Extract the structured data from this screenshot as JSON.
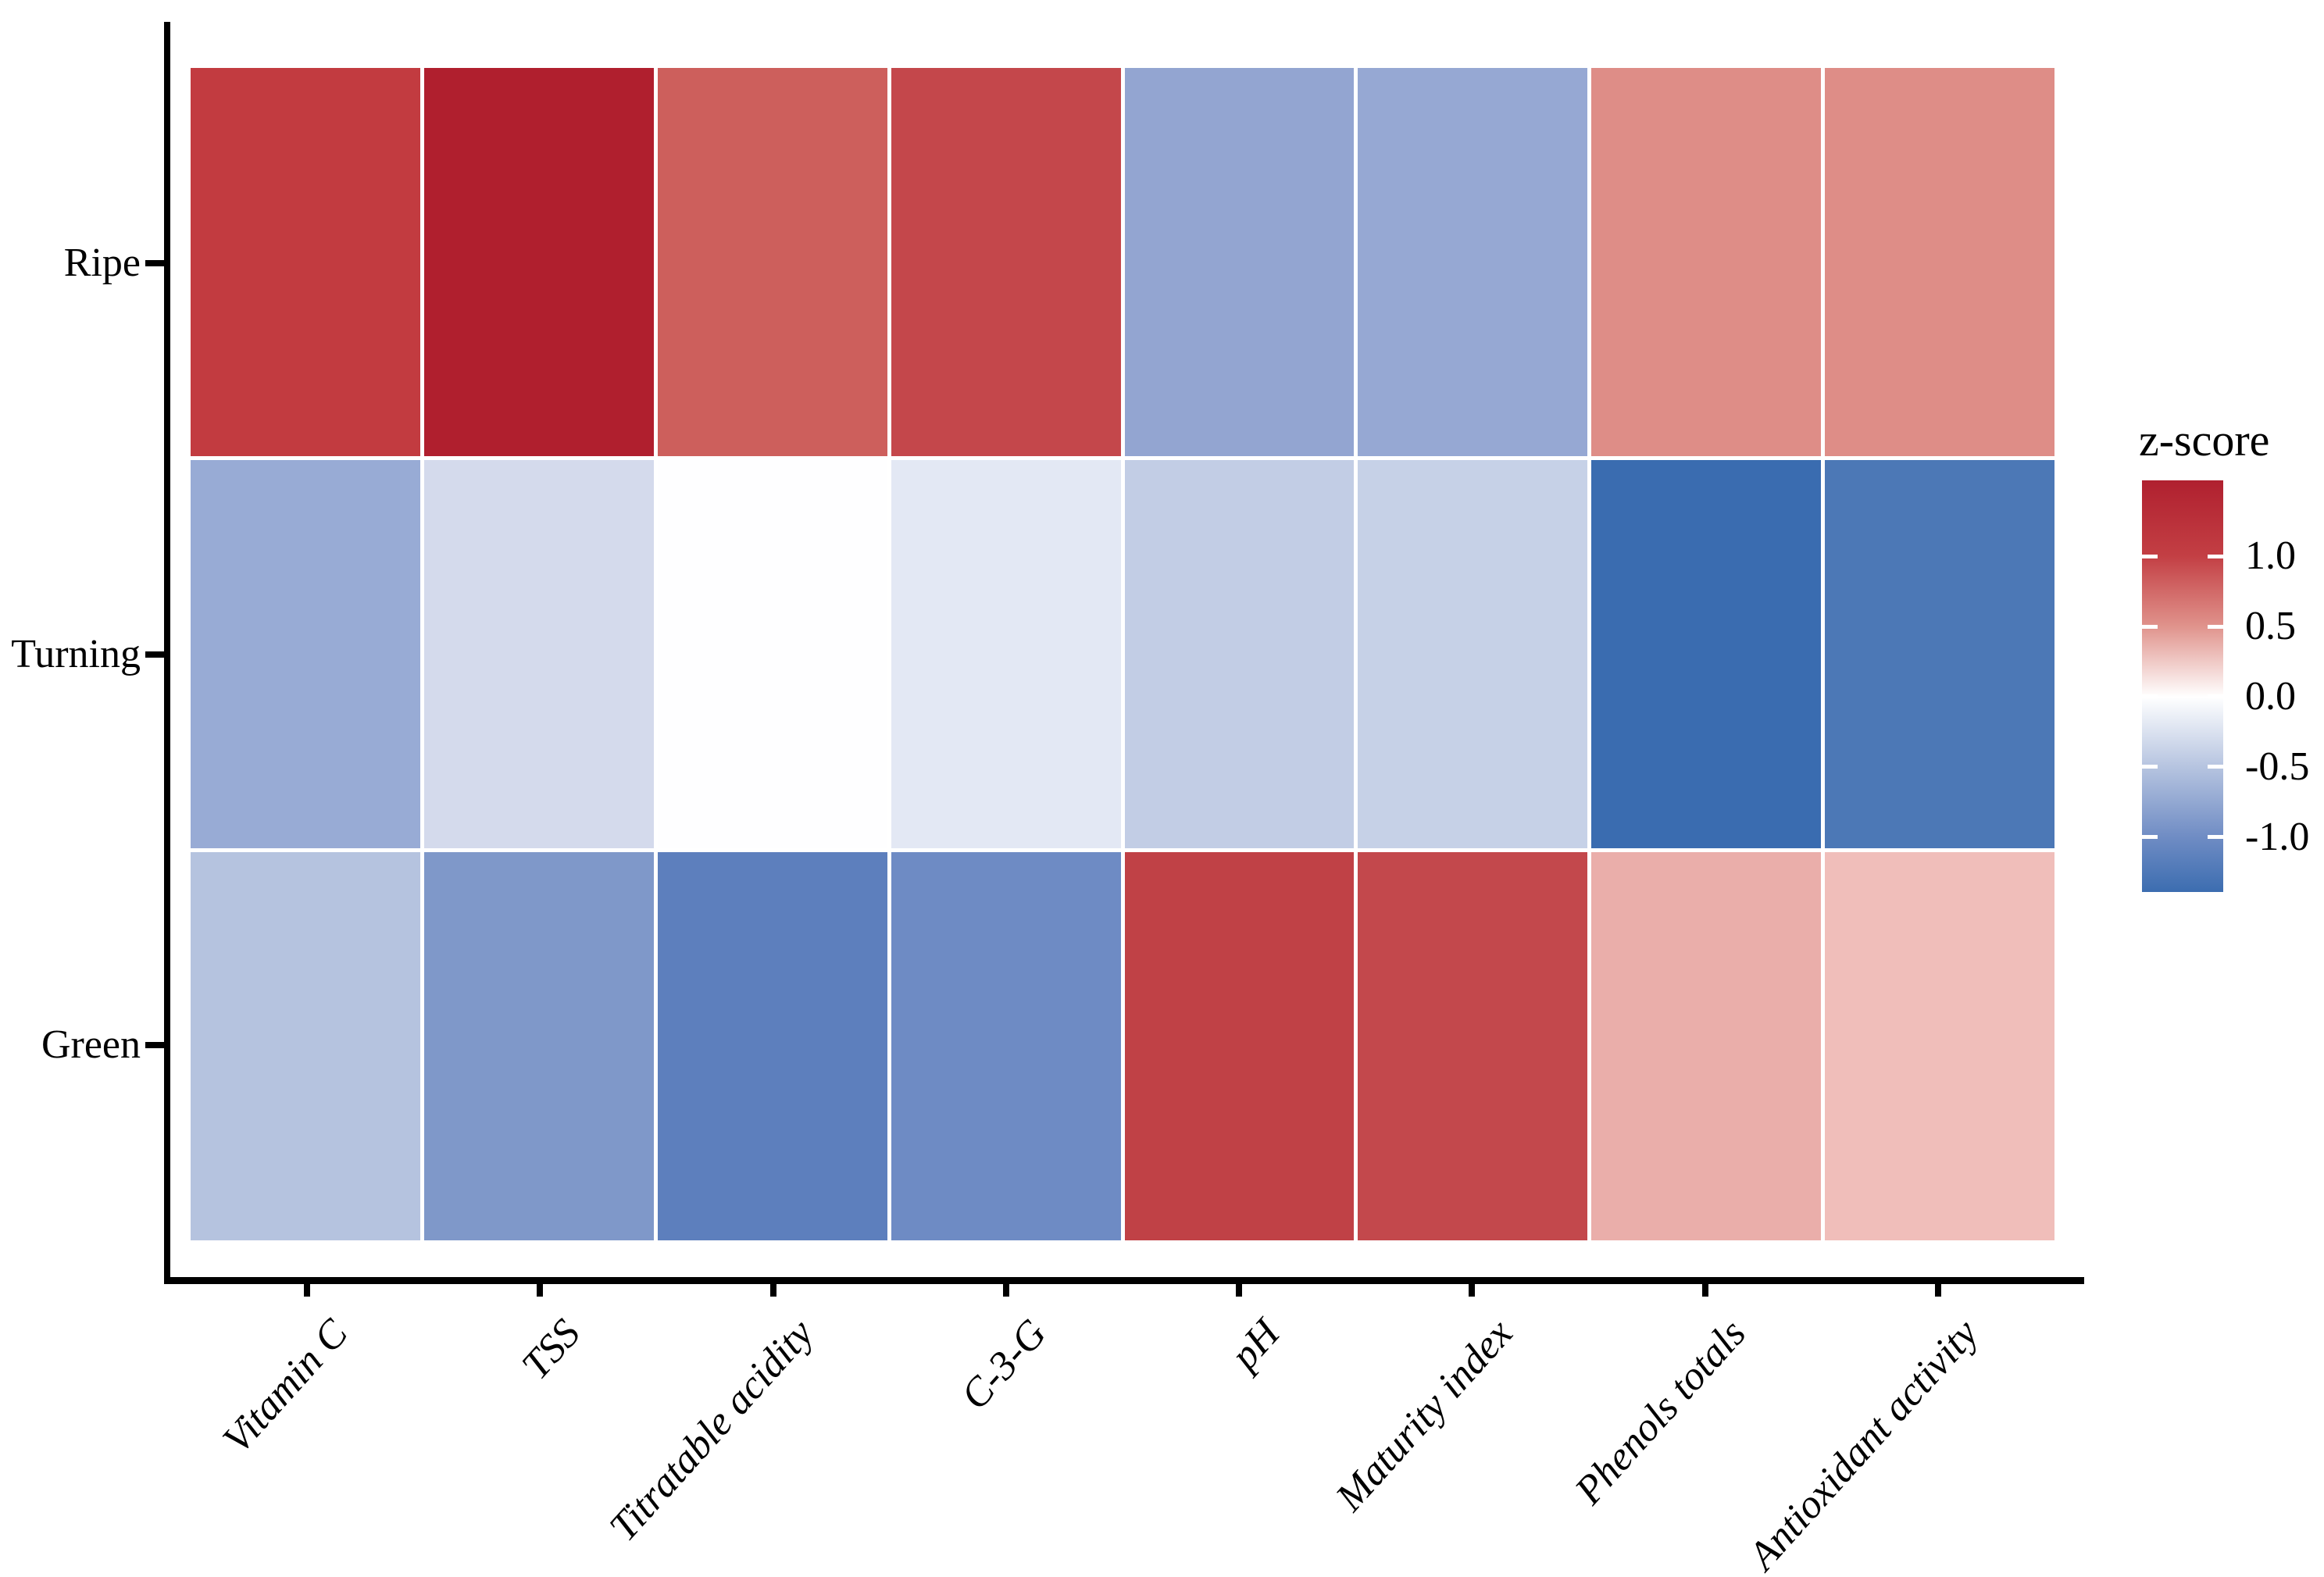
{
  "background_color": "#FFFFFF",
  "axis_color": "#000000",
  "tile_border_color": "#FFFFFF",
  "chart_data": {
    "type": "heatmap",
    "title": "",
    "xlabel": "",
    "ylabel": "",
    "rows": [
      "Ripe",
      "Turning",
      "Green"
    ],
    "columns": [
      "Vitamin C",
      "TSS",
      "Titratable acidity",
      "C-3-G",
      "pH",
      "Maturity index",
      "Phenols totals",
      "Antioxidant activity"
    ],
    "series": [
      {
        "name": "Ripe",
        "colors": [
          "#C23B40",
          "#B01F2E",
          "#CD5F5C",
          "#C4474B",
          "#93A5D1",
          "#96A8D3",
          "#DE8D87",
          "#DE8D87"
        ],
        "z_est": [
          1.1,
          1.5,
          0.8,
          1.0,
          -0.75,
          -0.7,
          0.55,
          0.55
        ]
      },
      {
        "name": "Turning",
        "colors": [
          "#98ABD5",
          "#D4DAEC",
          "#FEFEFF",
          "#E3E8F4",
          "#C2CDE5",
          "#C6D1E7",
          "#3A6CB0",
          "#4C78B6"
        ],
        "z_est": [
          -0.7,
          -0.3,
          0.0,
          -0.2,
          -0.45,
          -0.4,
          -1.35,
          -1.25
        ]
      },
      {
        "name": "Green",
        "colors": [
          "#B5C3DF",
          "#7F98C9",
          "#5D7FBD",
          "#6E8BC4",
          "#C04146",
          "#C3484C",
          "#EAAEAA",
          "#F0BEBA"
        ],
        "z_est": [
          -0.5,
          -0.9,
          -1.15,
          -1.0,
          1.15,
          1.1,
          0.45,
          0.35
        ]
      }
    ],
    "legend": {
      "title": "z-score",
      "tick_labels": [
        "1.0",
        "0.5",
        "0.0",
        "-0.5",
        "-1.0"
      ],
      "tick_values": [
        1.0,
        0.5,
        0.0,
        -0.5,
        -1.0
      ],
      "domain": [
        -1.39,
        1.54
      ],
      "gradient_stops": [
        {
          "z": 1.54,
          "color": "#B0202F"
        },
        {
          "z": 1.0,
          "color": "#C33F44"
        },
        {
          "z": 0.5,
          "color": "#E0938C"
        },
        {
          "z": 0.0,
          "color": "#FFFFFF"
        },
        {
          "z": -0.5,
          "color": "#B6C4E0"
        },
        {
          "z": -1.0,
          "color": "#6F8CC4"
        },
        {
          "z": -1.39,
          "color": "#3C6DB0"
        }
      ],
      "position": "right",
      "grid": "off"
    }
  }
}
